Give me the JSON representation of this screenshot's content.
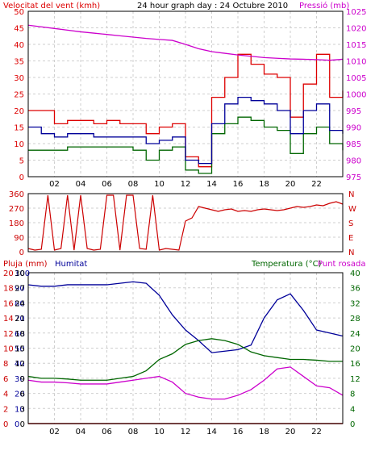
{
  "colors": {
    "wind_avg": "#000099",
    "wind_gust": "#dd0000",
    "wind_green": "#006600",
    "pressure": "#cc00cc",
    "direction": "#cc0000",
    "humidity": "#000099",
    "temperature": "#006600",
    "dewpoint": "#cc00cc",
    "rain": "#cc0000",
    "grid": "#cfcfcf"
  },
  "chart_data": [
    {
      "type": "line",
      "title": "24 hour graph day : 24 Octubre 2010",
      "ylabel": "Velocitat del vent (kmh)",
      "y2label": "Pressió (mb)",
      "ylim": [
        0,
        50
      ],
      "y2lim": [
        975,
        1025
      ],
      "yticks": [
        "0",
        "5",
        "10",
        "15",
        "20",
        "25",
        "30",
        "35",
        "40",
        "45",
        "50"
      ],
      "y2ticks": [
        "975",
        "980",
        "985",
        "990",
        "995",
        "1000",
        "1005",
        "1010",
        "1015",
        "1020",
        "1025"
      ],
      "xticks": [
        "02",
        "04",
        "06",
        "08",
        "10",
        "12",
        "14",
        "16",
        "18",
        "20",
        "22"
      ],
      "series": [
        {
          "x": [
            0,
            1,
            2,
            3,
            4,
            5,
            6,
            7,
            8,
            9,
            10,
            11,
            12,
            13,
            14,
            15,
            16,
            17,
            18,
            19,
            20,
            21,
            22,
            23,
            24
          ],
          "values": [
            20,
            20,
            16,
            17,
            17,
            16,
            17,
            16,
            16,
            13,
            15,
            16,
            6,
            3,
            24,
            30,
            37,
            34,
            31,
            30,
            18,
            28,
            37,
            24,
            26
          ]
        },
        {
          "x": [
            0,
            1,
            2,
            3,
            4,
            5,
            6,
            7,
            8,
            9,
            10,
            11,
            12,
            13,
            14,
            15,
            16,
            17,
            18,
            19,
            20,
            21,
            22,
            23,
            24
          ],
          "values": [
            15,
            13,
            12,
            13,
            13,
            12,
            12,
            12,
            12,
            10,
            11,
            12,
            5,
            4,
            16,
            22,
            24,
            23,
            22,
            20,
            13,
            20,
            22,
            14,
            13
          ]
        },
        {
          "x": [
            0,
            1,
            2,
            3,
            4,
            5,
            6,
            7,
            8,
            9,
            10,
            11,
            12,
            13,
            14,
            15,
            16,
            17,
            18,
            19,
            20,
            21,
            22,
            23,
            24
          ],
          "values": [
            8,
            8,
            8,
            9,
            9,
            9,
            9,
            9,
            8,
            5,
            8,
            9,
            2,
            1,
            13,
            16,
            18,
            17,
            15,
            14,
            7,
            13,
            15,
            10,
            8
          ]
        },
        {
          "x": [
            0,
            1,
            2,
            3,
            4,
            5,
            6,
            7,
            8,
            9,
            10,
            11,
            12,
            13,
            14,
            15,
            16,
            17,
            18,
            19,
            20,
            21,
            22,
            23,
            24
          ],
          "values": [
            1020.8,
            1020.3,
            1019.8,
            1019.3,
            1018.8,
            1018.4,
            1018.0,
            1017.6,
            1017.2,
            1016.8,
            1016.5,
            1016.2,
            1015.0,
            1013.7,
            1012.8,
            1012.3,
            1011.8,
            1011.4,
            1011.0,
            1010.8,
            1010.6,
            1010.5,
            1010.4,
            1010.2,
            1010.5
          ]
        }
      ]
    },
    {
      "type": "scatter",
      "ylabels": [
        "360",
        "270",
        "180",
        "90",
        "0"
      ],
      "ylabels_right": [
        "N",
        "W",
        "S",
        "E",
        "N"
      ],
      "ylim": [
        0,
        360
      ],
      "x": [
        0,
        0.5,
        1,
        1.5,
        2,
        2.5,
        3,
        3.5,
        4,
        4.5,
        5,
        5.5,
        6,
        6.5,
        7,
        7.5,
        8,
        8.5,
        9,
        9.5,
        10,
        10.5,
        11,
        11.5,
        12,
        12.5,
        13,
        13.5,
        14,
        14.5,
        15,
        15.5,
        16,
        16.5,
        17,
        17.5,
        18,
        18.5,
        19,
        19.5,
        20,
        20.5,
        21,
        21.5,
        22,
        22.5,
        23,
        23.5,
        24
      ],
      "values": [
        20,
        10,
        15,
        350,
        10,
        20,
        350,
        10,
        350,
        20,
        10,
        15,
        350,
        350,
        10,
        350,
        350,
        20,
        15,
        350,
        10,
        20,
        15,
        10,
        190,
        210,
        280,
        270,
        260,
        250,
        260,
        265,
        250,
        255,
        250,
        260,
        265,
        260,
        255,
        260,
        270,
        280,
        275,
        280,
        290,
        285,
        300,
        310,
        295
      ]
    },
    {
      "type": "line",
      "ylabel_left1": "Pluja (mm)",
      "ylabel_left2": "Humitat",
      "ylabel_right": "Temperatura (°C)",
      "ylabel_right2": "Punt rosada",
      "yticks_rain": [
        "0",
        "2",
        "4",
        "6",
        "8",
        "10",
        "12",
        "14",
        "16",
        "18",
        "20"
      ],
      "yticks_hum": [
        "0",
        "10",
        "20",
        "30",
        "40",
        "50",
        "60",
        "70",
        "80",
        "90",
        "100"
      ],
      "yticks_temp": [
        "0",
        "3",
        "6",
        "9",
        "12",
        "15",
        "18",
        "21",
        "24",
        "27",
        "30"
      ],
      "yticks_right": [
        "0",
        "4",
        "8",
        "12",
        "16",
        "20",
        "24",
        "28",
        "32",
        "36",
        "40"
      ],
      "ylim_humidity": [
        0,
        100
      ],
      "ylim_temp": [
        0,
        40
      ],
      "series": [
        {
          "x": [
            0,
            1,
            2,
            3,
            4,
            5,
            6,
            7,
            8,
            9,
            10,
            11,
            12,
            13,
            14,
            15,
            16,
            17,
            18,
            19,
            20,
            21,
            22,
            23,
            24
          ],
          "values": [
            92,
            91,
            91,
            92,
            92,
            92,
            92,
            93,
            94,
            93,
            85,
            72,
            62,
            55,
            47,
            48,
            49,
            52,
            70,
            82,
            86,
            75,
            62,
            60,
            58
          ]
        },
        {
          "x": [
            0,
            1,
            2,
            3,
            4,
            5,
            6,
            7,
            8,
            9,
            10,
            11,
            12,
            13,
            14,
            15,
            16,
            17,
            18,
            19,
            20,
            21,
            22,
            23,
            24
          ],
          "values": [
            12.5,
            12.0,
            12.0,
            11.8,
            11.5,
            11.5,
            11.5,
            12.0,
            12.5,
            14.0,
            17.0,
            18.5,
            21.0,
            22.0,
            22.5,
            22.0,
            21.0,
            19.0,
            18.0,
            17.5,
            17.0,
            17.0,
            16.8,
            16.5,
            16.5
          ]
        },
        {
          "x": [
            0,
            1,
            2,
            3,
            4,
            5,
            6,
            7,
            8,
            9,
            10,
            11,
            12,
            13,
            14,
            15,
            16,
            17,
            18,
            19,
            20,
            21,
            22,
            23,
            24
          ],
          "values": [
            11.5,
            11.0,
            11.0,
            10.8,
            10.5,
            10.5,
            10.5,
            11.0,
            11.5,
            12.0,
            12.5,
            11.0,
            8.0,
            7.0,
            6.5,
            6.5,
            7.5,
            9.0,
            11.5,
            14.5,
            15.0,
            12.5,
            10.0,
            9.5,
            7.5
          ]
        },
        {
          "x": [
            0,
            24
          ],
          "values": [
            0,
            0
          ]
        }
      ]
    }
  ]
}
